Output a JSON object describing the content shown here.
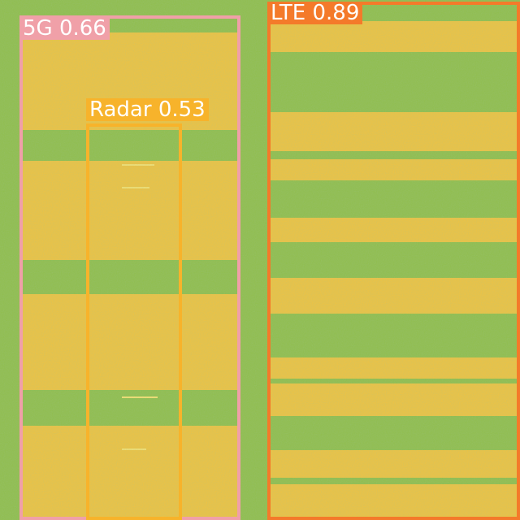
{
  "image": {
    "kind": "spectrogram object detection overlay",
    "background_colors": {
      "signal": "#f2c23e",
      "noise_floor": "#8fbd4a"
    }
  },
  "detections": [
    {
      "class": "5G",
      "score": "0.66",
      "label": "5G 0.66",
      "color": "#f0a0a8"
    },
    {
      "class": "Radar",
      "score": "0.53",
      "label": "Radar 0.53",
      "color": "#f7b32b"
    },
    {
      "class": "LTE",
      "score": "0.89",
      "label": "LTE 0.89",
      "color": "#f47a2a"
    }
  ]
}
